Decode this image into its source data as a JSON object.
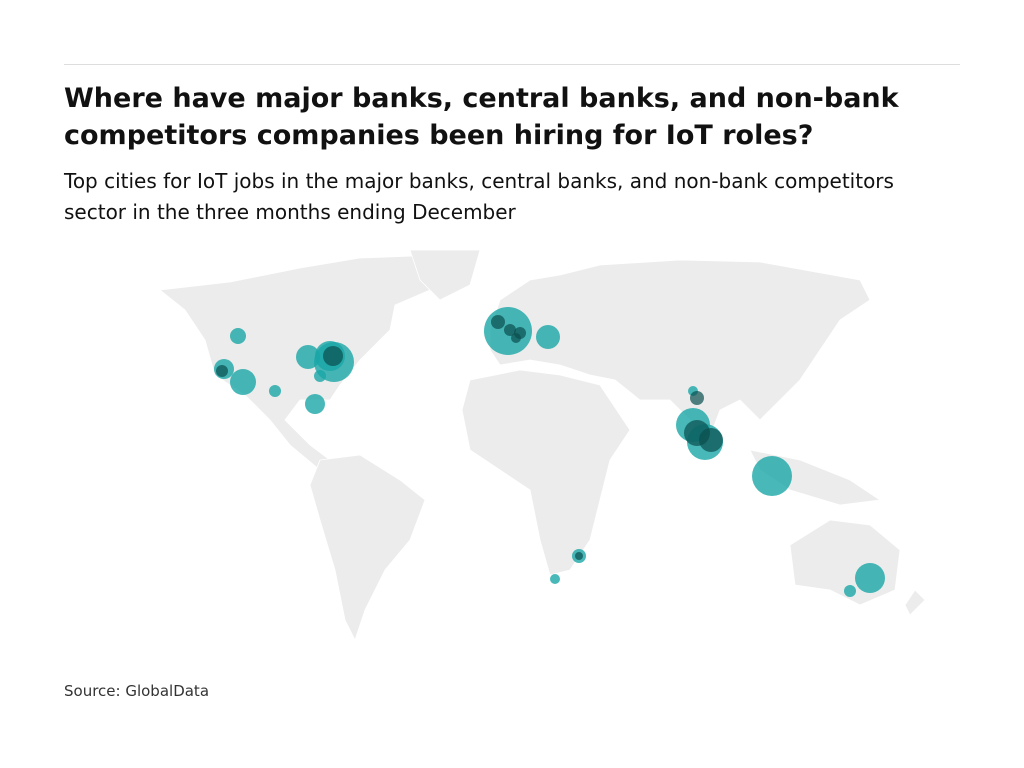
{
  "header": {
    "title": "Where have major banks, central banks, and non-bank competitors companies been hiring for IoT roles?",
    "subtitle": "Top cities for IoT jobs in the major banks, central banks, and non-bank competitors sector in the three months ending December"
  },
  "footer": {
    "source": "Source: GlobalData"
  }
}
